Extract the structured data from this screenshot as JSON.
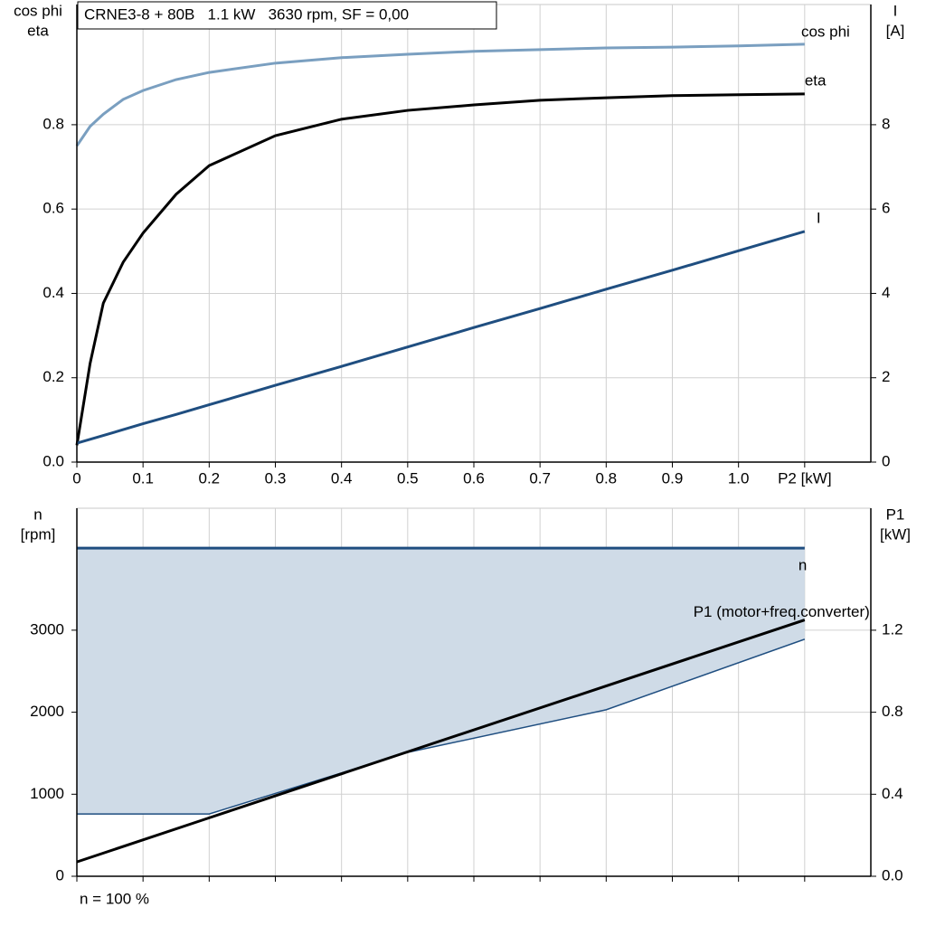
{
  "chart_data": [
    {
      "type": "line",
      "title": "CRNE3-8 + 80B   1.1 kW   3630 rpm, SF = 0,00",
      "y_label": [
        "cos phi",
        "eta"
      ],
      "y2_label": [
        "I",
        "[A]"
      ],
      "x": [
        0,
        0.02,
        0.04,
        0.07,
        0.1,
        0.15,
        0.2,
        0.3,
        0.4,
        0.5,
        0.6,
        0.7,
        0.8,
        0.9,
        1.0,
        1.1
      ],
      "xlim": [
        0,
        1.2
      ],
      "xticks": [
        0,
        0.1,
        0.2,
        0.3,
        0.4,
        0.5,
        0.6,
        0.7,
        0.8,
        0.9,
        {
          "value": 1,
          "label": "1.0"
        },
        {
          "value": 1.1,
          "label": "P2 [kW]"
        }
      ],
      "ylim": [
        0,
        1.085
      ],
      "yticks": [
        {
          "value": 0,
          "label": "0.0"
        },
        0.2,
        0.4,
        0.6,
        0.8
      ],
      "y2lim": [
        0,
        10.85
      ],
      "y2ticks": [
        0,
        2,
        4,
        6,
        8
      ],
      "grid": true,
      "series": [
        {
          "name": "cos phi",
          "color": "#7a9fc0",
          "values": [
            0.75,
            0.796,
            0.825,
            0.86,
            0.881,
            0.907,
            0.924,
            0.946,
            0.959,
            0.967,
            0.974,
            0.978,
            0.982,
            0.984,
            0.987,
            0.991
          ]
        },
        {
          "name": "eta",
          "color": "#000000",
          "values": [
            0.04,
            0.234,
            0.377,
            0.474,
            0.543,
            0.635,
            0.703,
            0.774,
            0.813,
            0.834,
            0.847,
            0.858,
            0.864,
            0.869,
            0.871,
            0.873
          ]
        },
        {
          "name": "I",
          "color": "#1f4e80",
          "axis": "y2",
          "values": [
            0.45,
            0.54,
            0.63,
            0.77,
            0.91,
            1.13,
            1.36,
            1.82,
            2.27,
            2.73,
            3.19,
            3.64,
            4.1,
            4.55,
            5.01,
            5.47
          ]
        }
      ]
    },
    {
      "type": "line",
      "y_label": [
        "n",
        "[rpm]"
      ],
      "y2_label": [
        "P1",
        "[kW]"
      ],
      "annotation": "n = 100 %",
      "x": [
        0,
        0.2,
        0.5,
        0.8,
        1.1
      ],
      "xlim": [
        0,
        1.2
      ],
      "xticks": [
        0,
        0.1,
        0.2,
        0.3,
        0.4,
        0.5,
        0.6,
        0.7,
        0.8,
        0.9,
        1.0,
        1.1
      ],
      "ylim": [
        0,
        4487
      ],
      "yticks": [
        0,
        1000,
        2000,
        3000
      ],
      "y2lim": [
        0,
        1.795
      ],
      "y2ticks": [
        {
          "value": 0,
          "label": "0.0"
        },
        0.4,
        0.8,
        1.2
      ],
      "grid": true,
      "band": {
        "color": "#cfdbe7",
        "lower": [
          760,
          760,
          1510,
          2030,
          2890
        ]
      },
      "series": [
        {
          "name": "n",
          "color": "#1f4e80",
          "values": [
            4000,
            4000,
            4000,
            4000,
            4000
          ]
        },
        {
          "name": "P1 (motor+freq.converter)",
          "color": "#000000",
          "axis": "y2",
          "values": [
            0.07,
            0.285,
            0.607,
            0.928,
            1.25
          ]
        }
      ]
    }
  ]
}
